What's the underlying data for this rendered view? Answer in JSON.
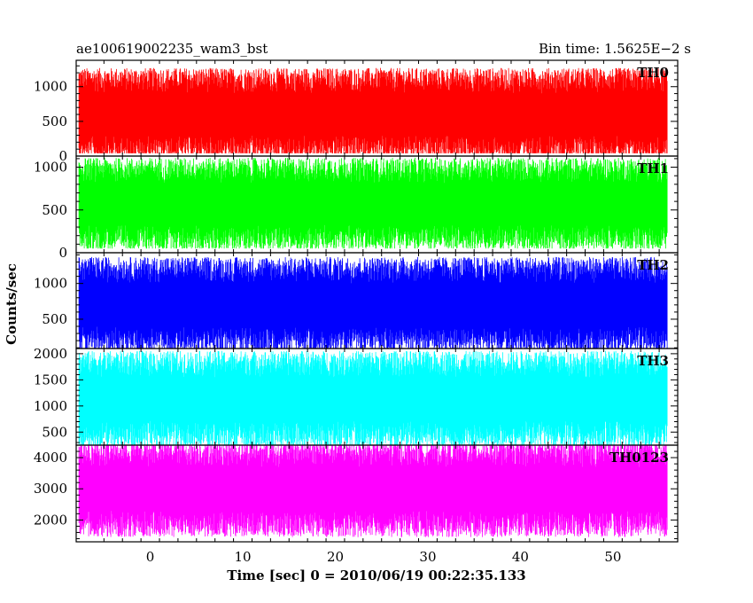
{
  "header": {
    "title": "ae100619002235_wam3_bst",
    "bin_time": "Bin time: 1.5625E−2 s"
  },
  "chart_data": {
    "type": "line",
    "title": "ae100619002235_wam3_bst",
    "subtitle": "Bin time: 1.5625E−2 s",
    "xlabel": "Time [sec] 0 = 2010/06/19 00:22:35.133",
    "ylabel": "Counts/sec",
    "xlim": [
      -8,
      57
    ],
    "x_data_range": [
      -7.7,
      55.9
    ],
    "xticks": [
      0,
      10,
      20,
      30,
      40,
      50
    ],
    "grid": false,
    "panels": [
      {
        "name": "TH0",
        "color": "#ff0000",
        "ylim": [
          0,
          1380
        ],
        "yticks": [
          0,
          500,
          1000
        ],
        "level": 600,
        "min": 40,
        "max": 1380
      },
      {
        "name": "TH1",
        "color": "#00ff00",
        "ylim": [
          0,
          1130
        ],
        "yticks": [
          0,
          500,
          1000
        ],
        "level": 570,
        "min": 50,
        "max": 1130
      },
      {
        "name": "TH2",
        "color": "#0000ff",
        "ylim": [
          90,
          1430
        ],
        "yticks": [
          500,
          1000
        ],
        "level": 700,
        "min": 90,
        "max": 1430
      },
      {
        "name": "TH3",
        "color": "#00ffff",
        "ylim": [
          250,
          2100
        ],
        "yticks": [
          500,
          1000,
          1500,
          2000
        ],
        "level": 1130,
        "min": 250,
        "max": 2100
      },
      {
        "name": "TH0123",
        "color": "#ff00ff",
        "ylim": [
          1300,
          4400
        ],
        "yticks": [
          2000,
          3000,
          4000
        ],
        "level": 3000,
        "min": 1300,
        "max": 4400
      }
    ]
  }
}
